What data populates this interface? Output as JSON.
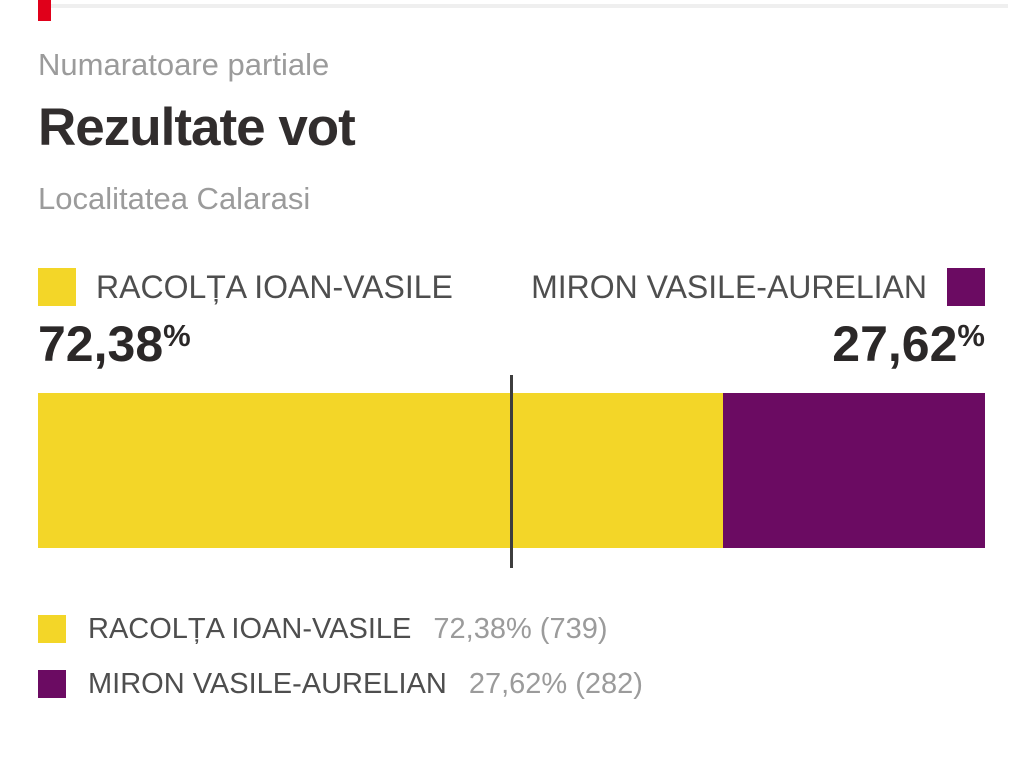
{
  "header": {
    "kicker": "Numaratoare partiale",
    "title": "Rezultate vot",
    "subtitle": "Localitatea Calarasi"
  },
  "colors": {
    "candidate1": "#f3d628",
    "candidate2": "#6b0b62",
    "accent_red": "#e0001a",
    "title_text": "#312d2d",
    "muted_text": "#9b9b9b",
    "legend_text": "#4e4e4e",
    "midline": "#3d3d3d",
    "hairline": "#efefef"
  },
  "chart_data": {
    "type": "bar",
    "orientation": "horizontal_stacked",
    "title": "Rezultate vot",
    "kicker": "Numaratoare partiale",
    "location": "Localitatea Calarasi",
    "axis_range_percent": [
      0,
      100
    ],
    "midline_at_percent": 50,
    "grid": false,
    "legend_position": "top_and_bottom",
    "series": [
      {
        "name": "RACOLȚA IOAN-VASILE",
        "percent": 72.38,
        "percent_label": "72,38",
        "percent_unit": "%",
        "votes": 739,
        "result_label": "72,38% (739)",
        "color": "#f3d628"
      },
      {
        "name": "MIRON VASILE-AURELIAN",
        "percent": 27.62,
        "percent_label": "27,62",
        "percent_unit": "%",
        "votes": 282,
        "result_label": "27,62% (282)",
        "color": "#6b0b62"
      }
    ]
  }
}
